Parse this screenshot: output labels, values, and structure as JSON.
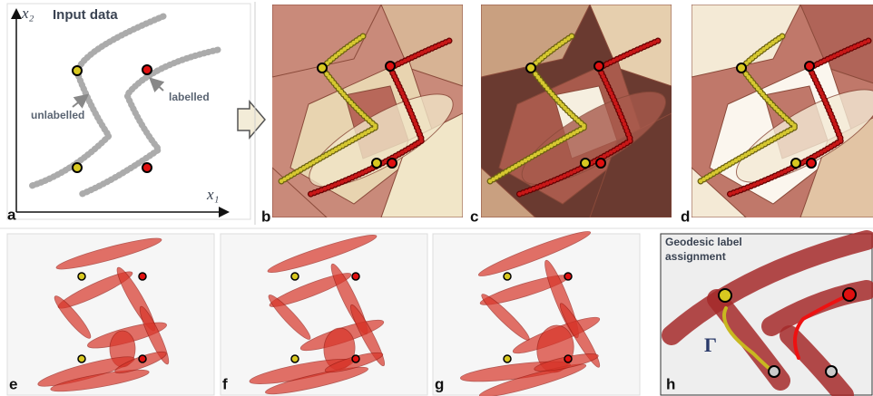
{
  "panel_a": {
    "label": "a",
    "title": "Input data",
    "x_axis": "x₁",
    "y_axis": "x₂",
    "annotations": [
      "unlabelled",
      "labelled"
    ]
  },
  "panel_labels": [
    "b",
    "c",
    "d",
    "e",
    "f",
    "g"
  ],
  "panel_h": {
    "label": "h",
    "title_lines": [
      "Geodesic label",
      "assignment"
    ],
    "symbol": "Γ"
  }
}
